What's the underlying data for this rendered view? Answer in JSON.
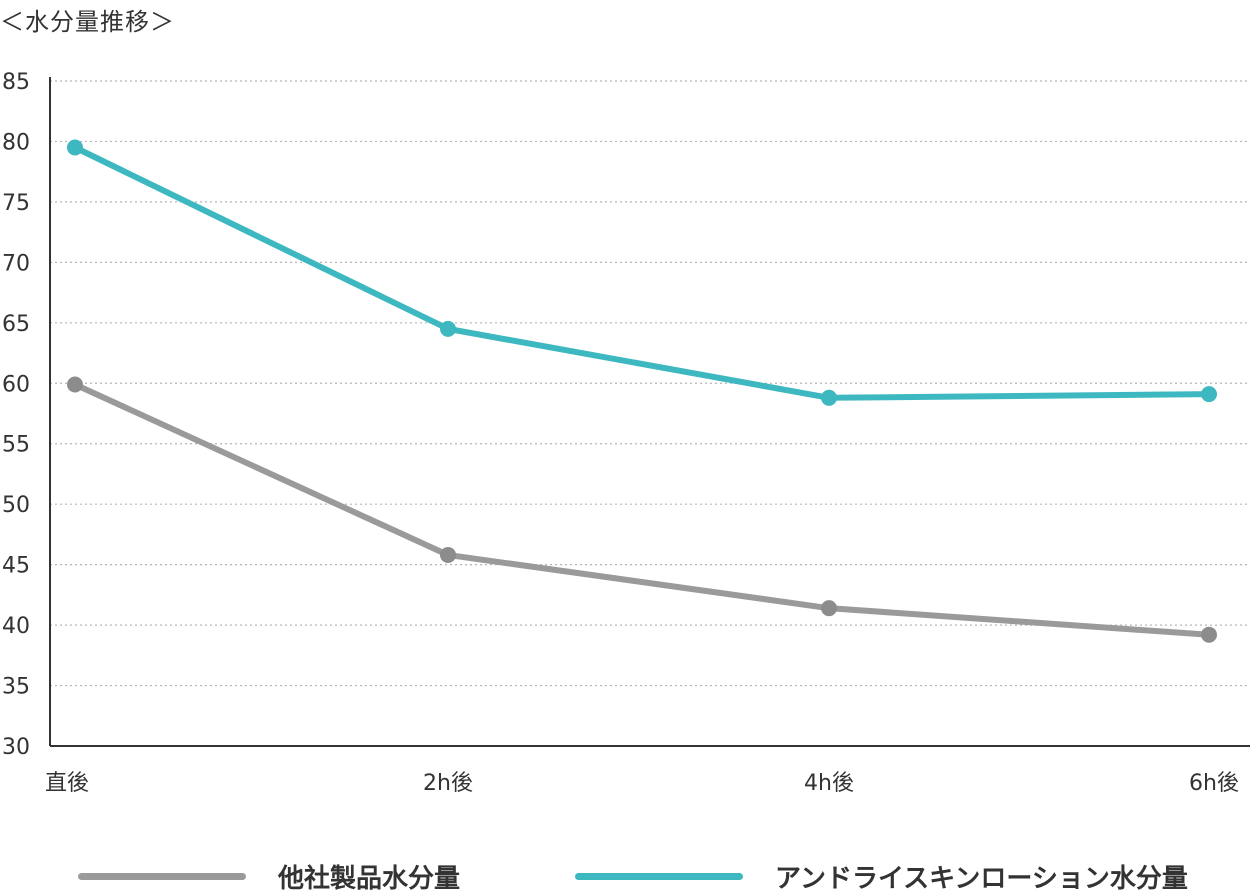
{
  "chart_data": {
    "type": "line",
    "title": "＜水分量推移＞",
    "categories": [
      "直後",
      "2h後",
      "4h後",
      "6h後"
    ],
    "series": [
      {
        "name": "他社製品水分量",
        "values": [
          59.9,
          45.8,
          41.4,
          39.2
        ],
        "color": "#9a9a9a",
        "marker_color": "#8c8c8c"
      },
      {
        "name": "アンドライスキンローション水分量",
        "values": [
          79.5,
          64.5,
          58.8,
          59.1
        ],
        "color": "#3db8c1",
        "marker_color": "#3db8c1"
      }
    ],
    "ylim": [
      30,
      85
    ],
    "yticks": [
      30,
      35,
      40,
      45,
      50,
      55,
      60,
      65,
      70,
      75,
      80,
      85
    ],
    "grid": "horizontal-dotted",
    "legend_position": "bottom"
  }
}
